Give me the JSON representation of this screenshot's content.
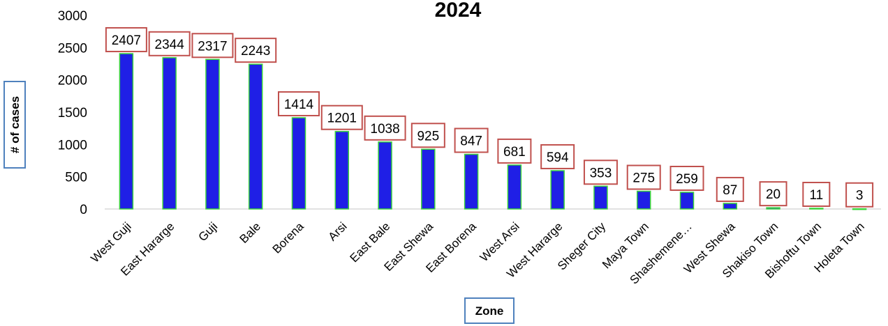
{
  "chart_data": {
    "type": "bar",
    "title": "2024",
    "xlabel": "Zone",
    "ylabel": "# of cases",
    "ylim": [
      0,
      3000
    ],
    "yticks": [
      "0",
      "500",
      "1000",
      "1500",
      "2000",
      "2500",
      "3000"
    ],
    "grid": false,
    "legend": "none",
    "categories": [
      "West Guji",
      "East Hararge",
      "Guji",
      "Bale",
      "Borena",
      "Arsi",
      "East Bale",
      "East Shewa",
      "East Borena",
      "West Arsi",
      "West Hararge",
      "Sheger City",
      "Maya Town",
      "Shashemene…",
      "West Shewa",
      "Shakiso Town",
      "Bishoftu Town",
      "Holeta Town"
    ],
    "values": [
      2407,
      2344,
      2317,
      2243,
      1414,
      1201,
      1038,
      925,
      847,
      681,
      594,
      353,
      275,
      259,
      87,
      20,
      11,
      3
    ],
    "data_labels": [
      "2407",
      "2344",
      "2317",
      "2243",
      "1414",
      "1201",
      "1038",
      "925",
      "847",
      "681",
      "594",
      "353",
      "275",
      "259",
      "87",
      "20",
      "11",
      "3"
    ],
    "colors": {
      "bar_fill": "#1f1fe6",
      "bar_stroke": "#3cd43c",
      "label_border": "#c0504d",
      "axis_title_border": "#4f81bd",
      "axis_line": "#d9d9d9"
    }
  }
}
